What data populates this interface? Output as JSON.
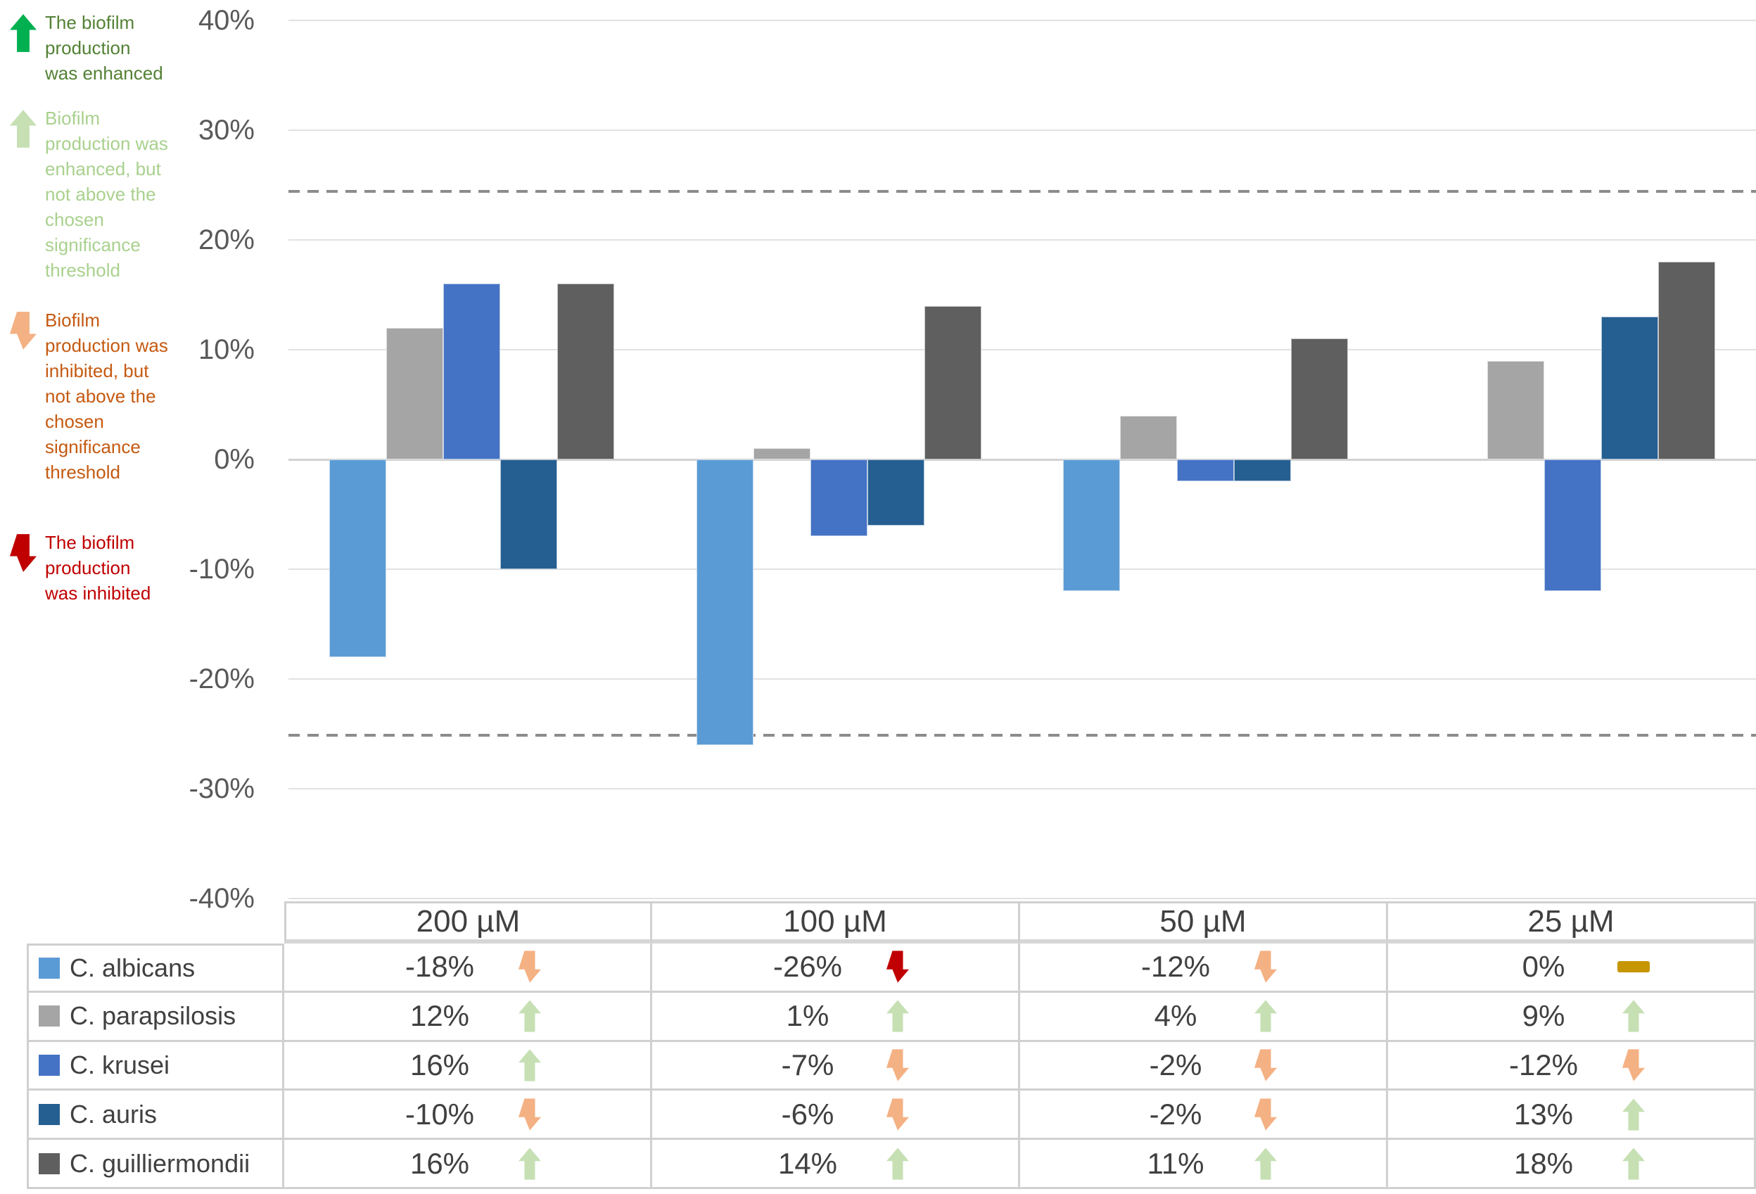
{
  "legend": {
    "items": [
      {
        "icon": "up-arrow",
        "arrow_color": "#00B050",
        "text_color": "#538135",
        "lines": [
          "The biofilm",
          "production",
          "was enhanced"
        ]
      },
      {
        "icon": "up-arrow",
        "arrow_color": "#C6E0B4",
        "text_color": "#A9D18E",
        "lines": [
          "Biofilm",
          "production was",
          "enhanced, but",
          "not above the",
          "chosen",
          "significance",
          "threshold"
        ]
      },
      {
        "icon": "down-arrow",
        "arrow_color": "#F4B183",
        "text_color": "#C55A11",
        "lines": [
          "Biofilm",
          "production was",
          "inhibited, but",
          "not above the",
          "chosen",
          "significance",
          "threshold"
        ]
      },
      {
        "icon": "down-arrow",
        "arrow_color": "#C00000",
        "text_color": "#C00000",
        "lines": [
          "The biofilm",
          "production",
          "was inhibited"
        ]
      }
    ]
  },
  "chart_data": {
    "type": "bar",
    "categories": [
      "200 µM",
      "100 µM",
      "50 µM",
      "25 µM"
    ],
    "series": [
      {
        "name": "C. albicans",
        "color": "#5B9BD5",
        "values": [
          -18,
          -26,
          -12,
          0
        ]
      },
      {
        "name": "C. parapsilosis",
        "color": "#A5A5A5",
        "values": [
          12,
          1,
          4,
          9
        ]
      },
      {
        "name": "C. krusei",
        "color": "#4472C4",
        "values": [
          16,
          -7,
          -2,
          -12
        ]
      },
      {
        "name": "C. auris",
        "color": "#255E91",
        "values": [
          -10,
          -6,
          -2,
          13
        ]
      },
      {
        "name": "C. guilliermondii",
        "color": "#5F5F5F",
        "values": [
          16,
          14,
          11,
          18
        ]
      }
    ],
    "title": "",
    "xlabel": "",
    "ylabel": "",
    "ylim": [
      -40,
      40
    ],
    "ytick_step": 10,
    "ytick_labels": [
      "40%",
      "30%",
      "20%",
      "10%",
      "0%",
      "-10%",
      "-20%",
      "-30%",
      "-40%"
    ],
    "grid": true,
    "legend_position": "left",
    "significance_thresholds": {
      "upper_pct": 24.4,
      "lower_pct": -25.1,
      "style": "dashed",
      "color": "#8C8C8C"
    }
  },
  "table": {
    "columns": [
      "200 µM",
      "100 µM",
      "50 µM",
      "25 µM"
    ],
    "rows": [
      {
        "name": "C. albicans",
        "swatch": "#5B9BD5",
        "cells": [
          {
            "value": "-18%",
            "indicator": "down-arrow",
            "color": "#F4B183"
          },
          {
            "value": "-26%",
            "indicator": "down-arrow",
            "color": "#C00000"
          },
          {
            "value": "-12%",
            "indicator": "down-arrow",
            "color": "#F4B183"
          },
          {
            "value": "0%",
            "indicator": "dash",
            "color": "#C69500"
          }
        ]
      },
      {
        "name": "C. parapsilosis",
        "swatch": "#A5A5A5",
        "cells": [
          {
            "value": "12%",
            "indicator": "up-arrow",
            "color": "#C6E0B4"
          },
          {
            "value": "1%",
            "indicator": "up-arrow",
            "color": "#C6E0B4"
          },
          {
            "value": "4%",
            "indicator": "up-arrow",
            "color": "#C6E0B4"
          },
          {
            "value": "9%",
            "indicator": "up-arrow",
            "color": "#C6E0B4"
          }
        ]
      },
      {
        "name": "C. krusei",
        "swatch": "#4472C4",
        "cells": [
          {
            "value": "16%",
            "indicator": "up-arrow",
            "color": "#C6E0B4"
          },
          {
            "value": "-7%",
            "indicator": "down-arrow",
            "color": "#F4B183"
          },
          {
            "value": "-2%",
            "indicator": "down-arrow",
            "color": "#F4B183"
          },
          {
            "value": "-12%",
            "indicator": "down-arrow",
            "color": "#F4B183"
          }
        ]
      },
      {
        "name": "C. auris",
        "swatch": "#255E91",
        "cells": [
          {
            "value": "-10%",
            "indicator": "down-arrow",
            "color": "#F4B183"
          },
          {
            "value": "-6%",
            "indicator": "down-arrow",
            "color": "#F4B183"
          },
          {
            "value": "-2%",
            "indicator": "down-arrow",
            "color": "#F4B183"
          },
          {
            "value": "13%",
            "indicator": "up-arrow",
            "color": "#C6E0B4"
          }
        ]
      },
      {
        "name": "C. guilliermondii",
        "swatch": "#5F5F5F",
        "cells": [
          {
            "value": "16%",
            "indicator": "up-arrow",
            "color": "#C6E0B4"
          },
          {
            "value": "14%",
            "indicator": "up-arrow",
            "color": "#C6E0B4"
          },
          {
            "value": "11%",
            "indicator": "up-arrow",
            "color": "#C6E0B4"
          },
          {
            "value": "18%",
            "indicator": "up-arrow",
            "color": "#C6E0B4"
          }
        ]
      }
    ]
  },
  "colors": {
    "gridline": "#E2E2E2",
    "zero_line": "#D2D2D2",
    "axis_text": "#595959",
    "table_text": "#404040",
    "table_border": "#D0D0D0"
  }
}
